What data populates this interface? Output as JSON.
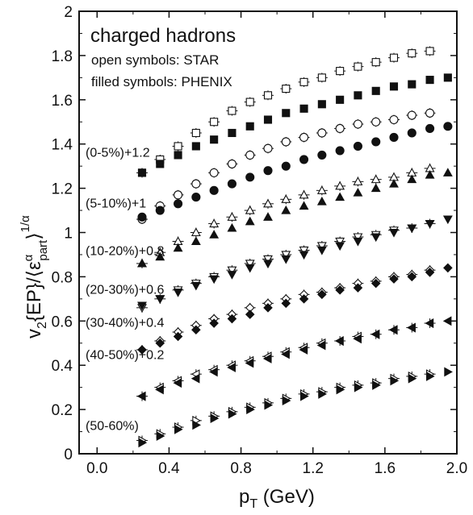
{
  "chart_data": {
    "type": "scatter",
    "title": "",
    "xlabel": "p",
    "xlabel_sub": "T",
    "xlabel_unit": " (GeV)",
    "ylabel_parts": {
      "v": "v",
      "sub2": "2",
      "ep": "{EP}/⟨ε",
      "alpha": "α",
      "part": "part",
      "close": "⟩",
      "exp": "1/α"
    },
    "xlim": [
      -0.1,
      2.0
    ],
    "ylim": [
      0,
      2
    ],
    "xticks": [
      "0.0",
      "0.4",
      "0.8",
      "1.2",
      "1.6",
      "2.0"
    ],
    "yticks": [
      "0",
      "0.2",
      "0.4",
      "0.6",
      "0.8",
      "1",
      "1.2",
      "1.4",
      "1.6",
      "1.8",
      "2"
    ],
    "grid": false,
    "annotations": {
      "main": "charged hadrons",
      "open": "open symbols: STAR",
      "filled": "filled symbols: PHENIX"
    },
    "series": [
      {
        "name": "(0-5%)+1.2",
        "label_y": 1.365,
        "marker": "square",
        "star": {
          "x": [
            0.25,
            0.35,
            0.45,
            0.55,
            0.65,
            0.75,
            0.85,
            0.95,
            1.05,
            1.15,
            1.25,
            1.35,
            1.45,
            1.55,
            1.65,
            1.75,
            1.85
          ],
          "y": [
            1.27,
            1.33,
            1.39,
            1.45,
            1.5,
            1.55,
            1.59,
            1.62,
            1.65,
            1.68,
            1.7,
            1.73,
            1.75,
            1.77,
            1.79,
            1.81,
            1.82
          ]
        },
        "phenix": {
          "x": [
            0.25,
            0.35,
            0.45,
            0.55,
            0.65,
            0.75,
            0.85,
            0.95,
            1.05,
            1.15,
            1.25,
            1.35,
            1.45,
            1.55,
            1.65,
            1.75,
            1.85,
            1.95
          ],
          "y": [
            1.27,
            1.31,
            1.35,
            1.39,
            1.42,
            1.45,
            1.48,
            1.51,
            1.54,
            1.56,
            1.58,
            1.6,
            1.62,
            1.64,
            1.66,
            1.67,
            1.69,
            1.7
          ]
        }
      },
      {
        "name": "(5-10%)+1",
        "label_y": 1.135,
        "marker": "circle",
        "star": {
          "x": [
            0.25,
            0.35,
            0.45,
            0.55,
            0.65,
            0.75,
            0.85,
            0.95,
            1.05,
            1.15,
            1.25,
            1.35,
            1.45,
            1.55,
            1.65,
            1.75,
            1.85
          ],
          "y": [
            1.06,
            1.12,
            1.17,
            1.22,
            1.27,
            1.31,
            1.35,
            1.38,
            1.41,
            1.43,
            1.45,
            1.47,
            1.49,
            1.5,
            1.51,
            1.53,
            1.54
          ]
        },
        "phenix": {
          "x": [
            0.25,
            0.35,
            0.45,
            0.55,
            0.65,
            0.75,
            0.85,
            0.95,
            1.05,
            1.15,
            1.25,
            1.35,
            1.45,
            1.55,
            1.65,
            1.75,
            1.85,
            1.95
          ],
          "y": [
            1.07,
            1.1,
            1.13,
            1.16,
            1.19,
            1.22,
            1.25,
            1.28,
            1.3,
            1.33,
            1.35,
            1.37,
            1.39,
            1.41,
            1.43,
            1.45,
            1.47,
            1.48
          ]
        }
      },
      {
        "name": "(10-20%)+0.8",
        "label_y": 0.92,
        "marker": "triangle-up",
        "star": {
          "x": [
            0.25,
            0.35,
            0.45,
            0.55,
            0.65,
            0.75,
            0.85,
            0.95,
            1.05,
            1.15,
            1.25,
            1.35,
            1.45,
            1.55,
            1.65,
            1.75,
            1.85
          ],
          "y": [
            0.86,
            0.91,
            0.96,
            1.0,
            1.04,
            1.07,
            1.1,
            1.13,
            1.15,
            1.17,
            1.19,
            1.21,
            1.23,
            1.24,
            1.25,
            1.27,
            1.29
          ]
        },
        "phenix": {
          "x": [
            0.25,
            0.35,
            0.45,
            0.55,
            0.65,
            0.75,
            0.85,
            0.95,
            1.05,
            1.15,
            1.25,
            1.35,
            1.45,
            1.55,
            1.65,
            1.75,
            1.85,
            1.95
          ],
          "y": [
            0.86,
            0.89,
            0.93,
            0.96,
            0.99,
            1.02,
            1.05,
            1.07,
            1.1,
            1.12,
            1.14,
            1.16,
            1.18,
            1.2,
            1.22,
            1.24,
            1.26,
            1.27
          ]
        }
      },
      {
        "name": "(20-30%)+0.6",
        "label_y": 0.745,
        "marker": "triangle-down",
        "star": {
          "x": [
            0.25,
            0.35,
            0.45,
            0.55,
            0.65,
            0.75,
            0.85,
            0.95,
            1.05,
            1.15,
            1.25,
            1.35,
            1.45,
            1.55,
            1.65,
            1.75,
            1.85
          ],
          "y": [
            0.66,
            0.7,
            0.74,
            0.77,
            0.8,
            0.83,
            0.86,
            0.88,
            0.9,
            0.92,
            0.94,
            0.96,
            0.98,
            0.99,
            1.01,
            1.02,
            1.04
          ]
        },
        "phenix": {
          "x": [
            0.25,
            0.35,
            0.45,
            0.55,
            0.65,
            0.75,
            0.85,
            0.95,
            1.05,
            1.15,
            1.25,
            1.35,
            1.45,
            1.55,
            1.65,
            1.75,
            1.85,
            1.95
          ],
          "y": [
            0.67,
            0.7,
            0.73,
            0.76,
            0.79,
            0.81,
            0.84,
            0.86,
            0.88,
            0.9,
            0.92,
            0.94,
            0.96,
            0.98,
            1.0,
            1.02,
            1.04,
            1.06
          ]
        }
      },
      {
        "name": "(30-40%)+0.4",
        "label_y": 0.595,
        "marker": "diamond",
        "star": {
          "x": [
            0.25,
            0.35,
            0.45,
            0.55,
            0.65,
            0.75,
            0.85,
            0.95,
            1.05,
            1.15,
            1.25,
            1.35,
            1.45,
            1.55,
            1.65,
            1.75,
            1.85
          ],
          "y": [
            0.47,
            0.51,
            0.55,
            0.58,
            0.61,
            0.63,
            0.66,
            0.68,
            0.7,
            0.72,
            0.73,
            0.75,
            0.77,
            0.78,
            0.8,
            0.81,
            0.83
          ]
        },
        "phenix": {
          "x": [
            0.25,
            0.35,
            0.45,
            0.55,
            0.65,
            0.75,
            0.85,
            0.95,
            1.05,
            1.15,
            1.25,
            1.35,
            1.45,
            1.55,
            1.65,
            1.75,
            1.85,
            1.95
          ],
          "y": [
            0.47,
            0.5,
            0.53,
            0.56,
            0.59,
            0.61,
            0.63,
            0.66,
            0.68,
            0.7,
            0.72,
            0.74,
            0.75,
            0.77,
            0.79,
            0.8,
            0.82,
            0.84
          ]
        }
      },
      {
        "name": "(40-50%)+0.2",
        "label_y": 0.45,
        "marker": "triangle-left",
        "star": {
          "x": [
            0.25,
            0.35,
            0.45,
            0.55,
            0.65,
            0.75,
            0.85,
            0.95,
            1.05,
            1.15,
            1.25,
            1.35,
            1.45,
            1.55,
            1.65,
            1.75,
            1.85
          ],
          "y": [
            0.26,
            0.3,
            0.33,
            0.36,
            0.38,
            0.4,
            0.42,
            0.44,
            0.46,
            0.48,
            0.5,
            0.51,
            0.53,
            0.54,
            0.56,
            0.57,
            0.59
          ]
        },
        "phenix": {
          "x": [
            0.25,
            0.35,
            0.45,
            0.55,
            0.65,
            0.75,
            0.85,
            0.95,
            1.05,
            1.15,
            1.25,
            1.35,
            1.45,
            1.55,
            1.65,
            1.75,
            1.85,
            1.95
          ],
          "y": [
            0.26,
            0.29,
            0.32,
            0.34,
            0.37,
            0.39,
            0.41,
            0.43,
            0.45,
            0.47,
            0.49,
            0.51,
            0.52,
            0.54,
            0.56,
            0.57,
            0.59,
            0.6
          ]
        }
      },
      {
        "name": "(50-60%)",
        "label_y": 0.13,
        "marker": "triangle-right",
        "star": {
          "x": [
            0.25,
            0.35,
            0.45,
            0.55,
            0.65,
            0.75,
            0.85,
            0.95,
            1.05,
            1.15,
            1.25,
            1.35,
            1.45,
            1.55,
            1.65,
            1.75,
            1.85
          ],
          "y": [
            0.06,
            0.09,
            0.12,
            0.15,
            0.17,
            0.19,
            0.21,
            0.23,
            0.25,
            0.27,
            0.28,
            0.3,
            0.31,
            0.32,
            0.34,
            0.35,
            0.36
          ]
        },
        "phenix": {
          "x": [
            0.25,
            0.35,
            0.45,
            0.55,
            0.65,
            0.75,
            0.85,
            0.95,
            1.05,
            1.15,
            1.25,
            1.35,
            1.45,
            1.55,
            1.65,
            1.75,
            1.85,
            1.95
          ],
          "y": [
            0.05,
            0.08,
            0.11,
            0.13,
            0.16,
            0.18,
            0.2,
            0.22,
            0.24,
            0.26,
            0.27,
            0.29,
            0.3,
            0.31,
            0.33,
            0.34,
            0.35,
            0.37
          ]
        }
      }
    ],
    "colors": {
      "marker": "#111111",
      "axis": "#111111",
      "background": "#ffffff"
    }
  }
}
